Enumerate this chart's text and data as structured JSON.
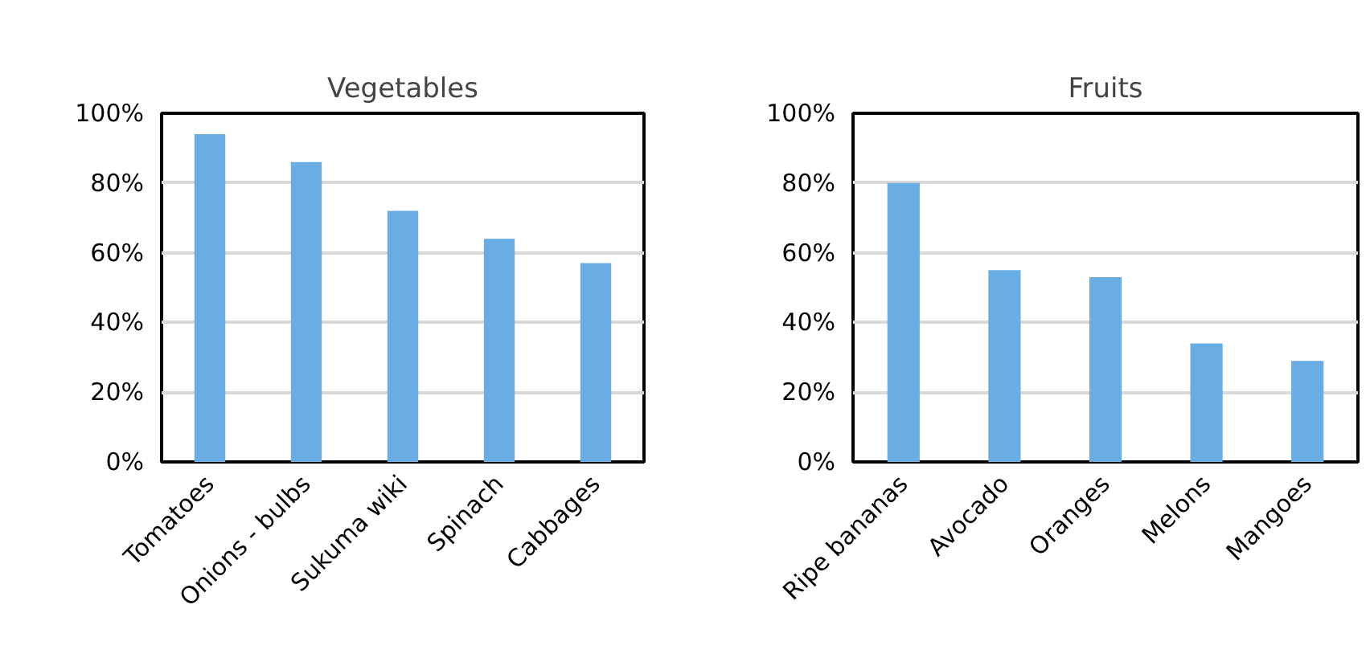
{
  "chart_data": [
    {
      "type": "bar",
      "title": "Vegetables",
      "categories": [
        "Tomatoes",
        "Onions - bulbs",
        "Sukuma wiki",
        "Spinach",
        "Cabbages"
      ],
      "values": [
        94,
        86,
        72,
        64,
        57
      ],
      "color": "#6aace4",
      "ylim": [
        0,
        100
      ],
      "yticks": [
        {
          "value": 0,
          "label": "0%"
        },
        {
          "value": 20,
          "label": "20%"
        },
        {
          "value": 40,
          "label": "40%"
        },
        {
          "value": 60,
          "label": "60%"
        },
        {
          "value": 80,
          "label": "80%"
        },
        {
          "value": 100,
          "label": "100%"
        }
      ],
      "grid": "y"
    },
    {
      "type": "bar",
      "title": "Fruits",
      "categories": [
        "Ripe bananas",
        "Avocado",
        "Oranges",
        "Melons",
        "Mangoes"
      ],
      "values": [
        80,
        55,
        53,
        34,
        29
      ],
      "color": "#6aace4",
      "ylim": [
        0,
        100
      ],
      "yticks": [
        {
          "value": 0,
          "label": "0%"
        },
        {
          "value": 20,
          "label": "20%"
        },
        {
          "value": 40,
          "label": "40%"
        },
        {
          "value": 60,
          "label": "60%"
        },
        {
          "value": 80,
          "label": "80%"
        },
        {
          "value": 100,
          "label": "100%"
        }
      ],
      "grid": "y"
    }
  ]
}
